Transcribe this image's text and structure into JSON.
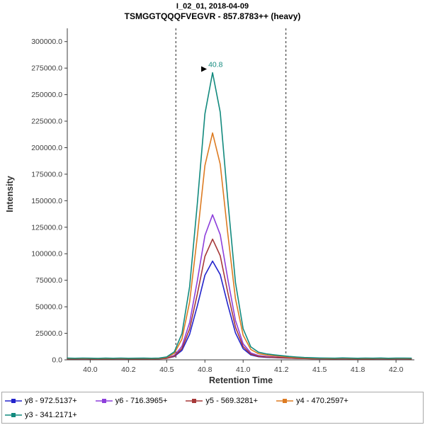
{
  "window": {
    "title_line1": "I_02_01, 2018-04-09",
    "title_line2": "TSMGGTQQQFVEGVR - 857.8783++ (heavy)"
  },
  "chart_data": {
    "type": "line",
    "title": "I_02_01, 2018-04-09",
    "subtitle": "TSMGGTQQQFVEGVR - 857.8783++ (heavy)",
    "xlabel": "Retention Time",
    "ylabel": "Intensity",
    "xlim": [
      39.85,
      42.12
    ],
    "ylim": [
      0,
      312500
    ],
    "grid": false,
    "legend_position": "bottom",
    "x_ticks": [
      {
        "value": 40.0,
        "label": "40.0"
      },
      {
        "value": 40.25,
        "label": "40.2"
      },
      {
        "value": 40.5,
        "label": "40.5"
      },
      {
        "value": 40.75,
        "label": "40.8"
      },
      {
        "value": 41.0,
        "label": "41.0"
      },
      {
        "value": 41.25,
        "label": "41.2"
      },
      {
        "value": 41.5,
        "label": "41.5"
      },
      {
        "value": 41.75,
        "label": "41.8"
      },
      {
        "value": 42.0,
        "label": "42.0"
      }
    ],
    "y_ticks": [
      {
        "value": 0,
        "label": "0.0"
      },
      {
        "value": 25000,
        "label": "25000.0"
      },
      {
        "value": 50000,
        "label": "50000.0"
      },
      {
        "value": 75000,
        "label": "75000.0"
      },
      {
        "value": 100000,
        "label": "100000.0"
      },
      {
        "value": 125000,
        "label": "125000.0"
      },
      {
        "value": 150000,
        "label": "150000.0"
      },
      {
        "value": 175000,
        "label": "175000.0"
      },
      {
        "value": 200000,
        "label": "200000.0"
      },
      {
        "value": 225000,
        "label": "225000.0"
      },
      {
        "value": 250000,
        "label": "250000.0"
      },
      {
        "value": 275000,
        "label": "275000.0"
      },
      {
        "value": 300000,
        "label": "300000.0"
      }
    ],
    "integration_boundaries": [
      40.56,
      41.28
    ],
    "peak_annotation": {
      "x": 40.8,
      "y": 270730,
      "label": "40.8",
      "color": "#128a7e"
    },
    "x": [
      39.85,
      39.9,
      39.95,
      40.0,
      40.05,
      40.1,
      40.15,
      40.2,
      40.25,
      40.3,
      40.35,
      40.4,
      40.45,
      40.5,
      40.55,
      40.6,
      40.65,
      40.7,
      40.75,
      40.8,
      40.85,
      40.9,
      40.95,
      41.0,
      41.05,
      41.1,
      41.15,
      41.2,
      41.25,
      41.3,
      41.35,
      41.4,
      41.45,
      41.5,
      41.55,
      41.6,
      41.65,
      41.7,
      41.75,
      41.8,
      41.85,
      41.9,
      41.95,
      42.0,
      42.05,
      42.1
    ],
    "series": [
      {
        "name": "y8 - 972.5137+",
        "color": "#2323cb",
        "values": [
          1100,
          950,
          1050,
          1000,
          1100,
          980,
          1020,
          1050,
          970,
          1100,
          1000,
          1060,
          980,
          1430,
          3070,
          8950,
          24080,
          50690,
          79820,
          93100,
          80360,
          51700,
          25450,
          10530,
          4680,
          2960,
          2420,
          2110,
          1830,
          1590,
          1390,
          1250,
          1150,
          1080,
          1050,
          980,
          1100,
          1020,
          960,
          1050,
          1000,
          1080,
          950,
          1020,
          1060,
          1000
        ]
      },
      {
        "name": "y6 - 716.3965+",
        "color": "#8d3fdb",
        "values": [
          1150,
          1050,
          1200,
          1100,
          1000,
          1150,
          1080,
          1200,
          1050,
          1100,
          1160,
          1020,
          1120,
          1730,
          4140,
          12810,
          35090,
          74260,
          117170,
          136730,
          117960,
          75760,
          37100,
          15130,
          6530,
          3980,
          3190,
          2730,
          2330,
          1970,
          1680,
          1460,
          1310,
          1220,
          1150,
          1080,
          1200,
          1100,
          1020,
          1150,
          1100,
          1180,
          1050,
          1120,
          1160,
          1100
        ]
      },
      {
        "name": "y5 - 569.3281+",
        "color": "#a63939",
        "values": [
          950,
          850,
          1000,
          900,
          800,
          950,
          880,
          1000,
          850,
          900,
          960,
          820,
          920,
          1430,
          3430,
          10650,
          29180,
          61780,
          97480,
          113750,
          98140,
          63020,
          30860,
          12570,
          5410,
          3300,
          2640,
          2260,
          1920,
          1620,
          1380,
          1200,
          1080,
          1000,
          950,
          880,
          1000,
          900,
          820,
          950,
          900,
          980,
          850,
          920,
          960,
          900
        ]
      },
      {
        "name": "y4 - 470.2597+",
        "color": "#dd7b22",
        "values": [
          1400,
          1250,
          1500,
          1350,
          1200,
          1400,
          1300,
          1450,
          1250,
          1350,
          1420,
          1280,
          1380,
          2290,
          6070,
          19650,
          54560,
          115960,
          183190,
          213850,
          184440,
          118300,
          57720,
          23290,
          9800,
          5820,
          4580,
          3860,
          3220,
          2660,
          2210,
          1870,
          1630,
          1490,
          1420,
          1300,
          1550,
          1400,
          1250,
          1450,
          1350,
          1500,
          1280,
          1400,
          1480,
          1350
        ]
      },
      {
        "name": "y3 - 341.2171+",
        "color": "#128a7e",
        "values": [
          1600,
          1450,
          1700,
          1550,
          1400,
          1600,
          1500,
          1650,
          1450,
          1550,
          1620,
          1480,
          1580,
          2760,
          7540,
          24750,
          68960,
          146730,
          231900,
          270730,
          233480,
          149700,
          72970,
          29350,
          12270,
          7220,
          5660,
          4740,
          3940,
          3230,
          2650,
          2220,
          1920,
          1730,
          1650,
          1550,
          1800,
          1600,
          1450,
          1700,
          1550,
          1750,
          1500,
          1600,
          1680,
          1550
        ]
      }
    ]
  }
}
